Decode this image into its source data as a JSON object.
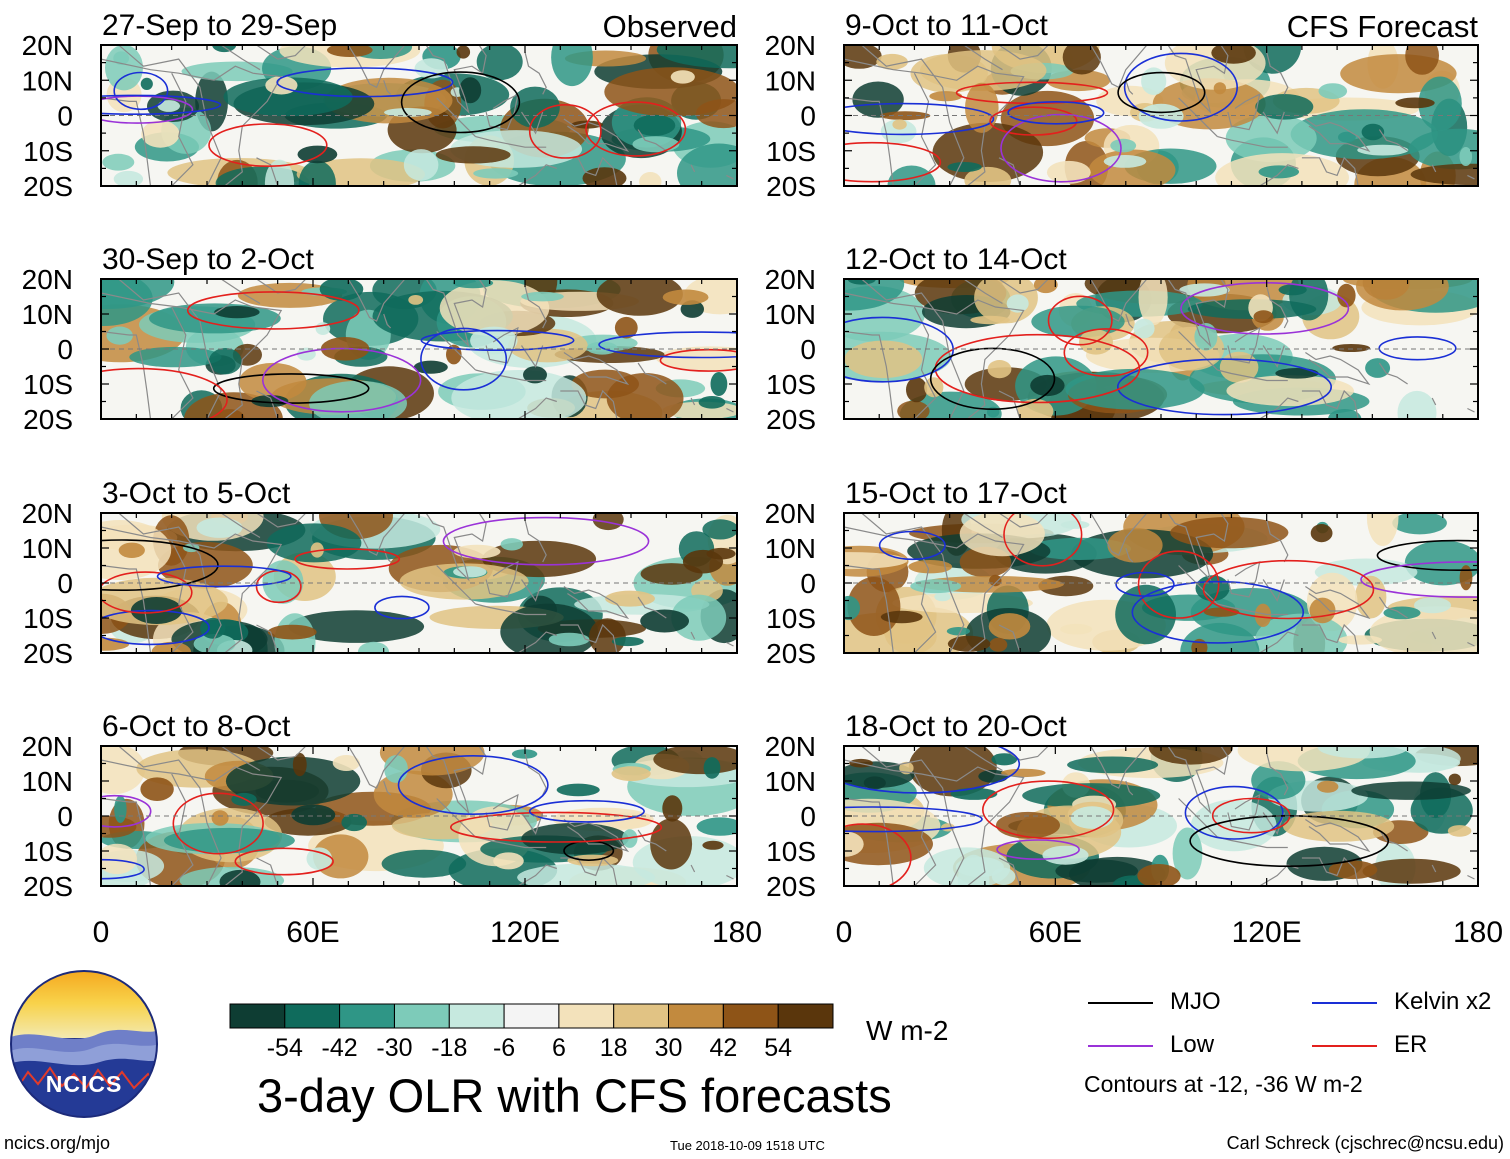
{
  "header_left": "Observed",
  "header_right": "CFS Forecast",
  "y_ticks": [
    "20N",
    "10N",
    "0",
    "10S",
    "20S"
  ],
  "x_ticks": [
    "0",
    "60E",
    "120E",
    "180"
  ],
  "panels": [
    {
      "title": "27-Sep to 29-Sep",
      "group": "observed"
    },
    {
      "title": "30-Sep to 2-Oct",
      "group": "observed"
    },
    {
      "title": "3-Oct to 5-Oct",
      "group": "observed"
    },
    {
      "title": "6-Oct to 8-Oct",
      "group": "observed"
    },
    {
      "title": "9-Oct to 11-Oct",
      "group": "forecast"
    },
    {
      "title": "12-Oct to 14-Oct",
      "group": "forecast"
    },
    {
      "title": "15-Oct to 17-Oct",
      "group": "forecast"
    },
    {
      "title": "18-Oct to 20-Oct",
      "group": "forecast"
    }
  ],
  "colorbar": {
    "colors": [
      "#0e3d33",
      "#0f6b5c",
      "#2f9686",
      "#7dcbb9",
      "#c6e9df",
      "#f4f4f4",
      "#f3e2bb",
      "#e1c384",
      "#c28a3e",
      "#8e5417",
      "#5a360c"
    ],
    "labels": [
      "-54",
      "-42",
      "-30",
      "-18",
      "-6",
      "6",
      "18",
      "30",
      "42",
      "54"
    ],
    "units": "W m-2"
  },
  "title": "3-day OLR with CFS forecasts",
  "legend": {
    "items": [
      {
        "label": "MJO",
        "color": "#000000"
      },
      {
        "label": "Kelvin x2",
        "color": "#1a2fd6"
      },
      {
        "label": "Low",
        "color": "#9a32d8"
      },
      {
        "label": "ER",
        "color": "#e3201d"
      }
    ],
    "note": "Contours at -12, -36 W m-2"
  },
  "logo_text": "NCICS",
  "footer": {
    "left": "ncics.org/mjo",
    "center": "Tue 2018-10-09 1518 UTC",
    "right": "Carl Schreck (cjschrec@ncsu.edu)"
  }
}
